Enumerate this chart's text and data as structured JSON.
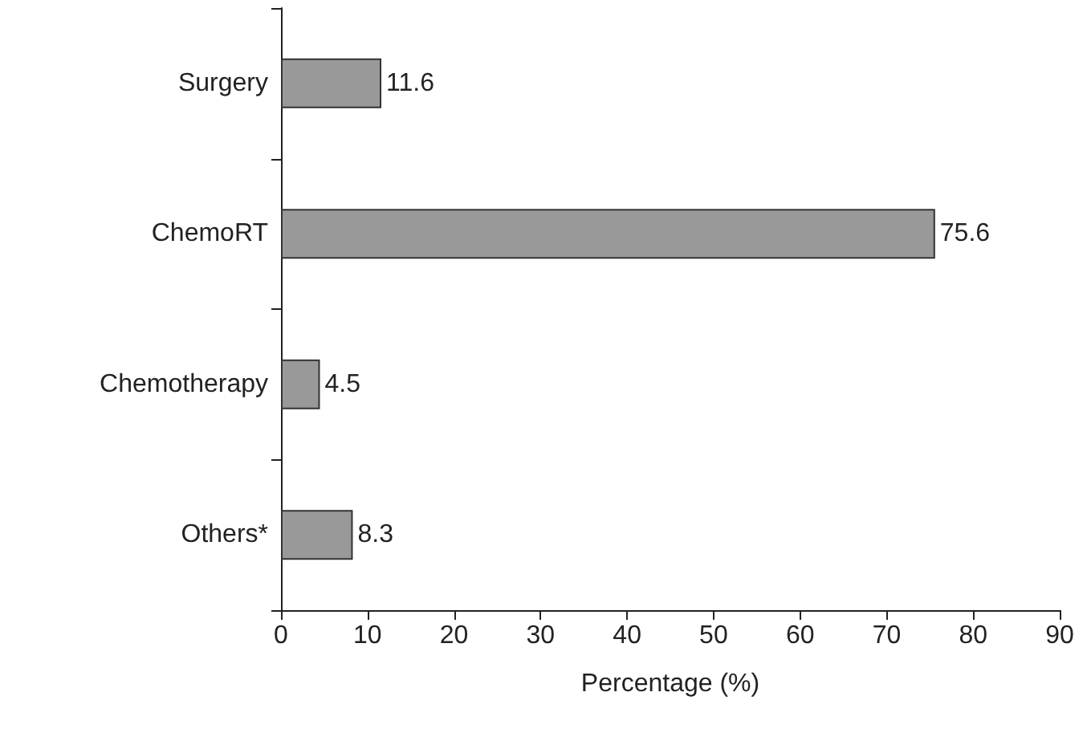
{
  "chart_data": {
    "type": "bar",
    "orientation": "horizontal",
    "xlabel": "Percentage (%)",
    "categories": [
      "Surgery",
      "ChemoRT",
      "Chemotherapy",
      "Others*"
    ],
    "values": [
      11.6,
      75.6,
      4.5,
      8.3
    ],
    "color": "#999999",
    "data_labels": true,
    "xlim": [
      0,
      90
    ],
    "xticks": [
      0,
      10,
      20,
      30,
      40,
      50,
      60,
      70,
      80,
      90
    ]
  }
}
